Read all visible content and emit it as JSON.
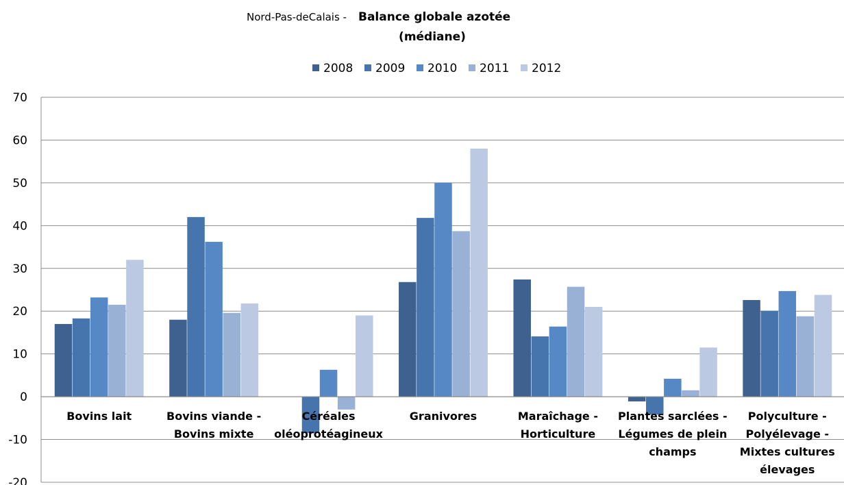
{
  "chart_data": {
    "type": "bar",
    "title_prefix": "Nord-Pas-deCalais - ",
    "title_line1": "Balance globale azotée",
    "title_line2": "(médiane)",
    "xlabel": "",
    "ylabel": "",
    "ylim": [
      -20,
      70
    ],
    "yticks": [
      "70",
      "60",
      "50",
      "40",
      "30",
      "20",
      "10",
      "0",
      "-10",
      "-20"
    ],
    "grid": true,
    "legend_position": "top",
    "categories": [
      [
        "Bovins lait"
      ],
      [
        "Bovins viande -",
        "Bovins mixte"
      ],
      [
        "Céréales",
        "oléoprotéagineux"
      ],
      [
        "Granivores"
      ],
      [
        "Maraîchage -",
        "Horticulture"
      ],
      [
        "Plantes sarclées -",
        "Légumes de plein",
        "champs"
      ],
      [
        "Polyculture -",
        "Polyélevage -",
        "Mixtes cultures",
        "élevages"
      ]
    ],
    "series": [
      {
        "name": "2008",
        "color": "#3e6190",
        "values": [
          17,
          18,
          0,
          26.8,
          27.4,
          -1.1,
          22.6
        ]
      },
      {
        "name": "2009",
        "color": "#4674ad",
        "values": [
          18.3,
          42,
          -8.5,
          41.8,
          14.1,
          -4.2,
          20.1
        ]
      },
      {
        "name": "2010",
        "color": "#5588c4",
        "values": [
          23.2,
          36.2,
          6.3,
          50,
          16.4,
          4.2,
          24.7
        ]
      },
      {
        "name": "2011",
        "color": "#98b1d5",
        "values": [
          21.5,
          19.6,
          -3,
          38.7,
          25.7,
          1.5,
          18.8
        ]
      },
      {
        "name": "2012",
        "color": "#bcc9e3",
        "values": [
          32,
          21.8,
          19,
          58,
          21,
          11.5,
          23.8
        ]
      }
    ]
  }
}
